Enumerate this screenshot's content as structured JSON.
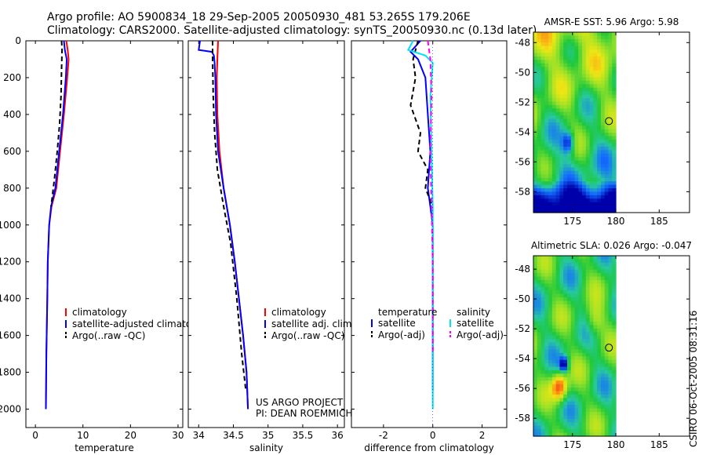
{
  "header": {
    "title_line1": "Argo profile: AO 5900834_18 29-Sep-2005 20050930_481 53.265S 179.206E",
    "title_line2": "Climatology: CARS2000. Satellite-adjusted climatology: synTS_20050930.nc (0.13d later)"
  },
  "footer": {
    "project": "US ARGO PROJECT",
    "pi": "PI: DEAN ROEMMICH",
    "stamp": "CSIRO 06-Oct-2005 08:31:16"
  },
  "colors": {
    "red": "#ff0000",
    "blue": "#0000ff",
    "black": "#000000",
    "cyan": "#00e5ee",
    "magenta": "#ff00ff"
  },
  "chart_data": [
    {
      "id": "temperature",
      "type": "line",
      "xlabel": "temperature",
      "xlim": [
        -2,
        31
      ],
      "ylim": [
        2100,
        0
      ],
      "xticks": [
        0,
        10,
        20,
        30
      ],
      "yticks": [
        0,
        200,
        400,
        600,
        800,
        1000,
        1200,
        1400,
        1600,
        1800,
        2000
      ],
      "legend": [
        "climatology",
        "satellite-adjusted climatology",
        "Argo(..raw -QC)"
      ],
      "series": [
        {
          "name": "climatology",
          "color": "red",
          "dash": false,
          "x": [
            6.5,
            6.8,
            7.0,
            6.7,
            6.0,
            5.2,
            4.4,
            3.4,
            2.9,
            2.6,
            2.5,
            2.3,
            2.2
          ],
          "y": [
            0,
            50,
            100,
            200,
            400,
            600,
            800,
            900,
            1000,
            1200,
            1400,
            1700,
            2000
          ]
        },
        {
          "name": "satellite-adjusted climatology",
          "color": "blue",
          "dash": false,
          "x": [
            6.0,
            6.2,
            6.6,
            6.4,
            5.8,
            5.0,
            4.2,
            3.3,
            2.9,
            2.6,
            2.5,
            2.3,
            2.2
          ],
          "y": [
            0,
            50,
            100,
            200,
            400,
            600,
            800,
            900,
            1000,
            1200,
            1400,
            1700,
            2000
          ]
        },
        {
          "name": "Argo(..raw -QC)",
          "color": "black",
          "dash": true,
          "x": [
            5.5,
            5.6,
            5.5,
            5.4,
            5.1,
            4.6,
            4.0,
            3.3
          ],
          "y": [
            0,
            50,
            150,
            300,
            450,
            600,
            750,
            900
          ]
        }
      ]
    },
    {
      "id": "salinity",
      "type": "line",
      "xlabel": "salinity",
      "xlim": [
        33.85,
        36.1
      ],
      "ylim": [
        2100,
        0
      ],
      "xticks": [
        34,
        34.5,
        35,
        35.5,
        36
      ],
      "xticklabels": [
        "34",
        "34.5",
        "35",
        "35.5",
        "36"
      ],
      "legend": [
        "climatology",
        "satellite adj. clim.",
        "Argo(..raw -QC)"
      ],
      "series": [
        {
          "name": "climatology",
          "color": "red",
          "dash": false,
          "x": [
            34.28,
            34.27,
            34.26,
            34.27,
            34.3,
            34.36,
            34.45,
            34.52,
            34.58,
            34.64,
            34.69,
            34.71
          ],
          "y": [
            0,
            100,
            200,
            400,
            600,
            800,
            1000,
            1200,
            1400,
            1600,
            1800,
            2000
          ]
        },
        {
          "name": "satellite adj. clim.",
          "color": "blue",
          "dash": false,
          "x": [
            34.02,
            34.0,
            34.19,
            34.22,
            34.23,
            34.24,
            34.25,
            34.28,
            34.36,
            34.45,
            34.52,
            34.58,
            34.64,
            34.69,
            34.71
          ],
          "y": [
            0,
            50,
            60,
            80,
            120,
            200,
            400,
            600,
            800,
            1000,
            1200,
            1400,
            1600,
            1800,
            2000
          ]
        },
        {
          "name": "Argo(..raw -QC)",
          "color": "black",
          "dash": true,
          "x": [
            34.2,
            34.2,
            34.21,
            34.23,
            34.27,
            34.36,
            34.46,
            34.55,
            34.62,
            34.68
          ],
          "y": [
            0,
            100,
            300,
            500,
            700,
            900,
            1100,
            1400,
            1700,
            1900
          ]
        }
      ]
    },
    {
      "id": "difference",
      "type": "line",
      "xlabel": "difference from climatology",
      "xlim": [
        -3.3,
        3.0
      ],
      "ylim": [
        2100,
        0
      ],
      "xticks": [
        -2,
        0,
        2
      ],
      "legend_temperature": {
        "title": "temperature",
        "items": [
          "satellite",
          "Argo(-adj)"
        ]
      },
      "legend_salinity": {
        "title": "salinity",
        "items": [
          "satellite",
          "Argo(-adj)"
        ]
      },
      "series": [
        {
          "name": "temperature satellite",
          "color": "blue",
          "dash": false,
          "x": [
            -0.5,
            -0.9,
            -0.6,
            -0.3,
            -0.2,
            -0.1,
            -0.2,
            -0.1,
            0.0,
            0.0,
            0.0
          ],
          "y": [
            0,
            60,
            100,
            200,
            400,
            600,
            800,
            900,
            1000,
            1500,
            1900
          ]
        },
        {
          "name": "temperature Argo(-adj)",
          "color": "black",
          "dash": true,
          "x": [
            -0.6,
            -0.8,
            -0.7,
            -0.9,
            -0.5,
            -0.6,
            -0.2,
            -0.3,
            0.0
          ],
          "y": [
            0,
            100,
            200,
            350,
            500,
            600,
            700,
            800,
            900
          ]
        },
        {
          "name": "salinity satellite",
          "color": "cyan",
          "dash": false,
          "x": [
            -0.8,
            -1.0,
            -0.3,
            0.0,
            -0.1,
            -0.05,
            0.0,
            0.0,
            0.0
          ],
          "y": [
            0,
            50,
            80,
            120,
            300,
            600,
            900,
            1400,
            2000
          ]
        },
        {
          "name": "salinity Argo(-adj)",
          "color": "magenta",
          "dash": true,
          "x": [
            -0.2,
            -0.1,
            -0.05,
            -0.1,
            -0.05,
            0.0,
            0.0
          ],
          "y": [
            0,
            100,
            300,
            600,
            900,
            1200,
            1700
          ]
        }
      ]
    },
    {
      "id": "sst_map",
      "type": "heatmap",
      "title": "AMSR-E SST: 5.96  Argo: 5.98",
      "xlim": [
        170.5,
        188.5
      ],
      "ylim": [
        -59.4,
        -47.3
      ],
      "xticks": [
        175,
        180,
        185
      ],
      "yticks": [
        -48,
        -50,
        -52,
        -54,
        -56,
        -58
      ],
      "data_extent_lon": [
        170.5,
        180
      ]
    },
    {
      "id": "sla_map",
      "type": "heatmap",
      "title": "Altimetric SLA: 0.026  Argo: -0.047",
      "xlim": [
        170.5,
        188.5
      ],
      "ylim": [
        -59.2,
        -47.1
      ],
      "xticks": [
        175,
        180,
        185
      ],
      "yticks": [
        -48,
        -50,
        -52,
        -54,
        -56,
        -58
      ],
      "data_extent_lon": [
        170.5,
        180
      ]
    }
  ],
  "argo_position": {
    "lat": -53.265,
    "lon": 179.206
  }
}
